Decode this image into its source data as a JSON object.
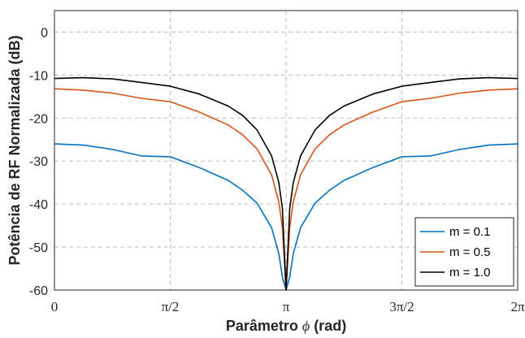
{
  "chart_data": {
    "type": "line",
    "xlabel_prefix": "Parâmetro ",
    "xlabel_symbol": "ϕ",
    "xlabel_suffix": " (rad)",
    "ylabel": "Potência de RF Normalizada (dB)",
    "xlim": [
      0,
      6.2832
    ],
    "ylim": [
      -60,
      5
    ],
    "grid": true,
    "legend_position": "bottom-right",
    "x_ticks": [
      {
        "value": 0,
        "label": "0"
      },
      {
        "value": 1.5708,
        "label": "π/2"
      },
      {
        "value": 3.1416,
        "label": "π"
      },
      {
        "value": 4.7124,
        "label": "3π/2"
      },
      {
        "value": 6.2832,
        "label": "2π"
      }
    ],
    "y_ticks": [
      {
        "value": 0,
        "label": "0"
      },
      {
        "value": -10,
        "label": "-10"
      },
      {
        "value": -20,
        "label": "-20"
      },
      {
        "value": -30,
        "label": "-30"
      },
      {
        "value": -40,
        "label": "-40"
      },
      {
        "value": -50,
        "label": "-50"
      },
      {
        "value": -60,
        "label": "-60"
      }
    ],
    "x": [
      0,
      0.3927,
      0.7854,
      1.1781,
      1.5708,
      1.9635,
      2.3562,
      2.5525,
      2.7489,
      2.9452,
      3.0434,
      3.0925,
      3.1416,
      3.1907,
      3.2398,
      3.3379,
      3.5343,
      3.7306,
      3.927,
      4.3197,
      4.7124,
      5.1051,
      5.4978,
      5.8905,
      6.2832
    ],
    "series": [
      {
        "name": "m = 0.1",
        "color": "#0072BD",
        "values": [
          -26.0,
          -26.3,
          -27.3,
          -28.8,
          -29.0,
          -31.5,
          -34.5,
          -36.8,
          -39.8,
          -45.5,
          -51.5,
          -57.0,
          -60,
          -57.0,
          -51.5,
          -45.5,
          -39.8,
          -36.8,
          -34.5,
          -31.5,
          -29.0,
          -28.8,
          -27.3,
          -26.3,
          -26.0
        ]
      },
      {
        "name": "m = 0.5",
        "color": "#D95319",
        "values": [
          -13.2,
          -13.5,
          -14.2,
          -15.4,
          -16.2,
          -18.6,
          -21.6,
          -23.9,
          -27.2,
          -33.2,
          -39.5,
          -45.5,
          -60,
          -45.5,
          -39.5,
          -33.2,
          -27.2,
          -23.9,
          -21.6,
          -18.6,
          -16.2,
          -15.4,
          -14.2,
          -13.5,
          -13.2
        ]
      },
      {
        "name": "m = 1.0",
        "color": "#000000",
        "values": [
          -10.8,
          -10.6,
          -10.9,
          -11.7,
          -12.6,
          -14.4,
          -17.2,
          -19.4,
          -22.8,
          -28.8,
          -35.0,
          -41.0,
          -60,
          -41.0,
          -35.0,
          -28.8,
          -22.8,
          -19.4,
          -17.2,
          -14.4,
          -12.6,
          -11.7,
          -10.9,
          -10.6,
          -10.8
        ]
      }
    ]
  }
}
